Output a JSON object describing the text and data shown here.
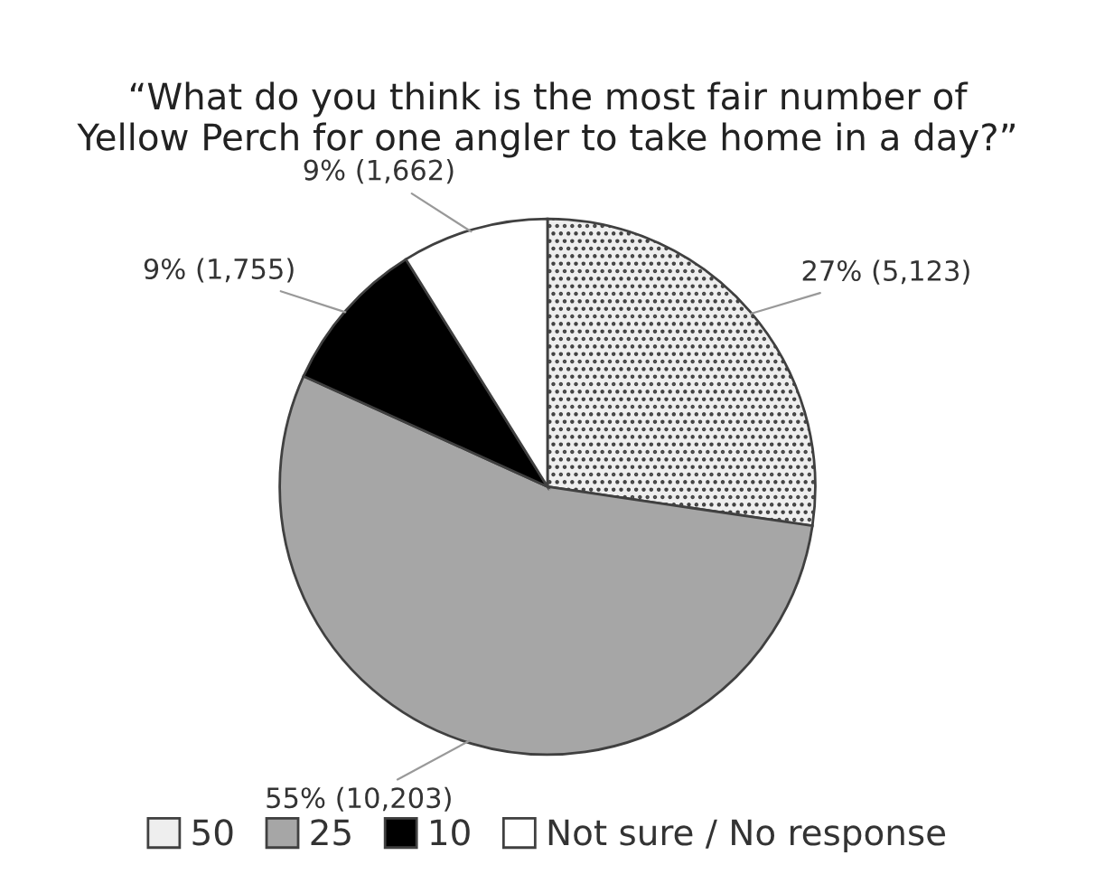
{
  "chart_data": {
    "type": "pie",
    "title": "“What do you think is the most fair number of\nYellow Perch for one angler to take home in a day?”",
    "categories": [
      "50",
      "25",
      "10",
      "Not sure / No response"
    ],
    "values": [
      5123,
      10203,
      1755,
      1662
    ],
    "colors": [
      "#eeeeee",
      "#a6a6a6",
      "#000000",
      "#ffffff"
    ],
    "value_labels": [
      "27% (5,123)",
      "55% (10,203)",
      "9% (1,755)",
      "9% (1,662)"
    ],
    "legend": "bottom"
  }
}
